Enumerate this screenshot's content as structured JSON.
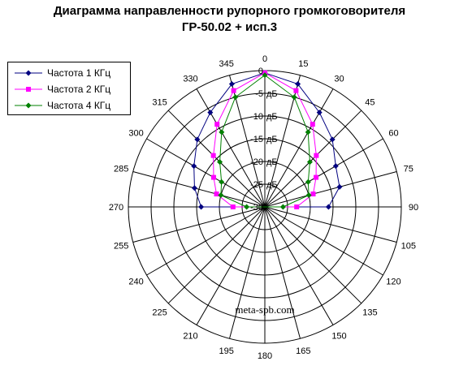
{
  "title_line1": "Диаграмма направленности рупорного громкоговорителя",
  "title_line2": "ГР-50.02 + исп.3",
  "watermark": "meta-spb.com",
  "colors": {
    "series1": "#000080",
    "series2": "#ff00ff",
    "series3": "#008000",
    "grid": "#000000"
  },
  "chart_data": {
    "type": "radar",
    "angles_deg": [
      "0",
      "15",
      "30",
      "45",
      "60",
      "75",
      "90",
      "105",
      "120",
      "135",
      "150",
      "165",
      "180",
      "195",
      "210",
      "225",
      "240",
      "255",
      "270",
      "285",
      "300",
      "315",
      "330",
      "345"
    ],
    "r_ticks": [
      "0",
      "-5",
      "-10",
      "-15",
      "-20",
      "-25",
      "-30"
    ],
    "r_unit": "дБ",
    "r_range": [
      -30,
      0
    ],
    "grid": true,
    "legend": "top-left",
    "series": [
      {
        "name": "Частота 1 КГц",
        "marker": "diamond",
        "angles": [
          0,
          15,
          30,
          45,
          60,
          75,
          90,
          270,
          285,
          300,
          315,
          330,
          345
        ],
        "values": [
          -0.5,
          -2,
          -6,
          -9,
          -12,
          -13,
          -16,
          -16,
          -14,
          -12,
          -9,
          -6,
          -2
        ]
      },
      {
        "name": "Частота 2 КГц",
        "marker": "square",
        "angles": [
          0,
          15,
          30,
          45,
          60,
          75,
          90,
          270,
          285,
          300,
          315,
          330,
          345
        ],
        "values": [
          -0.5,
          -3.5,
          -9,
          -14,
          -17,
          -19,
          -23,
          -23,
          -19,
          -17,
          -14,
          -9,
          -3.5
        ]
      },
      {
        "name": "Частота 4 КГц",
        "marker": "diamond",
        "angles": [
          0,
          15,
          30,
          45,
          60,
          75,
          90,
          270,
          285,
          300,
          315,
          330,
          345
        ],
        "values": [
          -1,
          -5,
          -11,
          -16,
          -19,
          -20,
          -26,
          -26,
          -20,
          -19,
          -16,
          -11,
          -5
        ]
      }
    ]
  }
}
